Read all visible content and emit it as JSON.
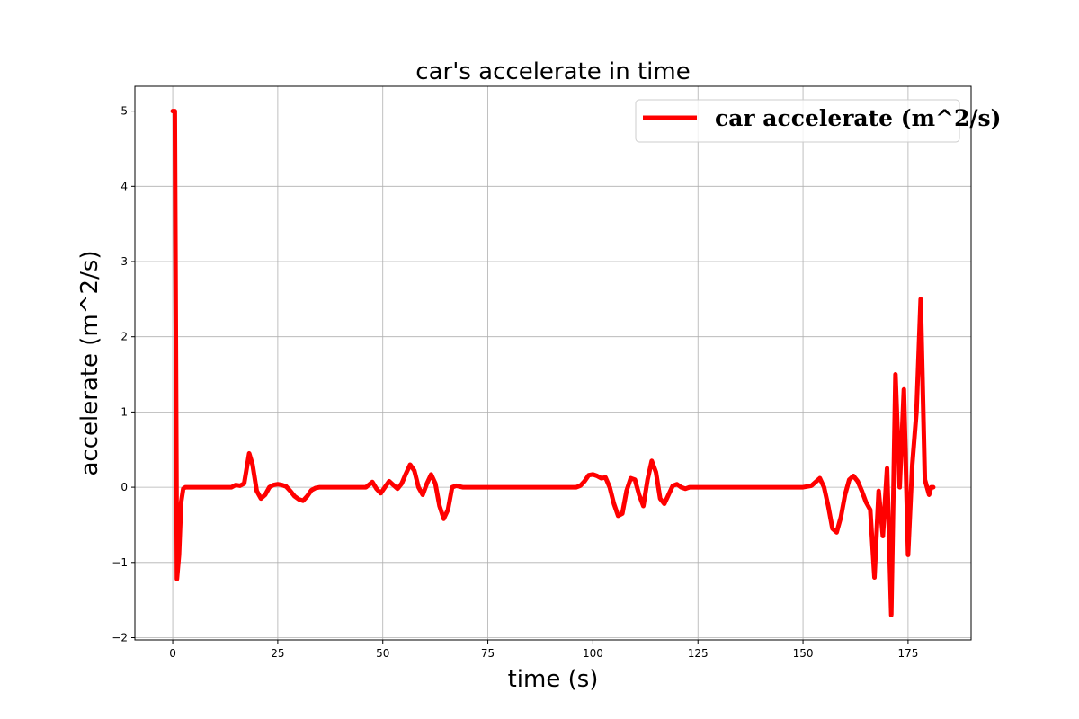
{
  "chart_data": {
    "type": "line",
    "title": "car's accelerate in time",
    "xlabel": "time (s)",
    "ylabel": "accelerate (m^2/s)",
    "xlim": [
      -9,
      190
    ],
    "ylim": [
      -2.03,
      5.33
    ],
    "xticks": [
      0,
      25,
      50,
      75,
      100,
      125,
      150,
      175
    ],
    "xtick_labels": [
      "0",
      "25",
      "50",
      "75",
      "100",
      "125",
      "150",
      "175"
    ],
    "yticks": [
      -2,
      -1,
      0,
      1,
      2,
      3,
      4,
      5
    ],
    "ytick_labels": [
      "−2",
      "−1",
      "0",
      "1",
      "2",
      "3",
      "4",
      "5"
    ],
    "grid": true,
    "legend_position": "top-right",
    "series": [
      {
        "name": "car accelerate (m^2/s)",
        "color": "#ff0000",
        "x": [
          0,
          0.3,
          0.5,
          1.0,
          1.5,
          2.0,
          2.5,
          3.0,
          4.0,
          6.0,
          10.0,
          14.0,
          15.0,
          16.0,
          17.0,
          18.2,
          19.0,
          20.0,
          21.0,
          22.0,
          23.0,
          24.0,
          25.0,
          26.0,
          27.0,
          28.0,
          29.0,
          30.0,
          31.0,
          32.0,
          33.0,
          34.0,
          35.0,
          37.0,
          40.0,
          44.0,
          45.0,
          46.0,
          47.5,
          48.5,
          49.5,
          50.5,
          51.5,
          52.5,
          53.5,
          54.5,
          55.5,
          56.5,
          57.5,
          58.5,
          59.5,
          60.5,
          61.5,
          62.5,
          63.5,
          64.5,
          65.5,
          66.5,
          67.5,
          69.0,
          72.0,
          80.0,
          90.0,
          95.0,
          96.0,
          97.0,
          98.0,
          99.0,
          100.0,
          101.0,
          102.0,
          103.0,
          104.0,
          105.0,
          106.0,
          107.0,
          108.0,
          109.0,
          110.0,
          111.0,
          112.0,
          113.0,
          114.0,
          115.0,
          116.0,
          117.0,
          118.0,
          119.0,
          120.0,
          121.0,
          122.0,
          123.0,
          124.0,
          126.0,
          130.0,
          140.0,
          145.0,
          150.0,
          152.0,
          153.0,
          154.0,
          155.0,
          156.0,
          157.0,
          158.0,
          159.0,
          160.0,
          161.0,
          162.0,
          163.0,
          164.0,
          165.0,
          166.0,
          167.0,
          168.0,
          169.0,
          170.0,
          171.0,
          172.0,
          173.0,
          174.0,
          175.0,
          176.0,
          177.0,
          178.0,
          179.0,
          180.0,
          180.5,
          181.0
        ],
        "y": [
          5.0,
          5.0,
          5.0,
          -1.22,
          -0.9,
          -0.2,
          -0.02,
          0.0,
          0.0,
          0.0,
          0.0,
          0.0,
          0.03,
          0.02,
          0.05,
          0.45,
          0.3,
          -0.05,
          -0.15,
          -0.1,
          0.0,
          0.03,
          0.04,
          0.03,
          0.01,
          -0.05,
          -0.12,
          -0.16,
          -0.18,
          -0.12,
          -0.04,
          -0.01,
          0.0,
          0.0,
          0.0,
          0.0,
          0.0,
          0.0,
          0.07,
          -0.02,
          -0.08,
          0.0,
          0.08,
          0.03,
          -0.02,
          0.05,
          0.18,
          0.3,
          0.22,
          0.0,
          -0.1,
          0.05,
          0.17,
          0.05,
          -0.25,
          -0.42,
          -0.3,
          0.0,
          0.02,
          0.0,
          0.0,
          0.0,
          0.0,
          0.0,
          0.0,
          0.02,
          0.08,
          0.16,
          0.17,
          0.15,
          0.12,
          0.13,
          0.0,
          -0.22,
          -0.38,
          -0.35,
          -0.05,
          0.12,
          0.1,
          -0.1,
          -0.25,
          0.1,
          0.35,
          0.2,
          -0.15,
          -0.22,
          -0.1,
          0.02,
          0.04,
          0.0,
          -0.02,
          0.0,
          0.0,
          0.0,
          0.0,
          0.0,
          0.0,
          0.0,
          0.02,
          0.07,
          0.12,
          0.0,
          -0.25,
          -0.55,
          -0.6,
          -0.4,
          -0.1,
          0.1,
          0.15,
          0.08,
          -0.05,
          -0.2,
          -0.3,
          -1.2,
          -0.05,
          -0.65,
          0.25,
          -1.7,
          1.5,
          0.0,
          1.3,
          -0.9,
          0.3,
          1.0,
          2.5,
          0.1,
          -0.1,
          0.0,
          0.0
        ]
      }
    ]
  }
}
